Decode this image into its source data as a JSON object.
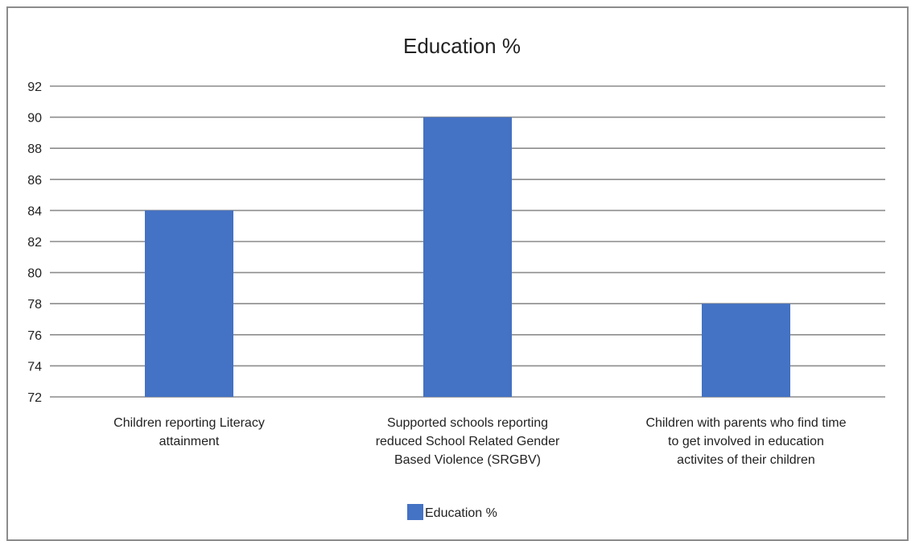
{
  "chart_data": {
    "type": "bar",
    "title": "Education %",
    "xlabel": "",
    "ylabel": "",
    "categories": [
      [
        "Children reporting Literacy",
        "attainment"
      ],
      [
        "Supported schools reporting",
        "reduced School Related Gender",
        "Based Violence (SRGBV)"
      ],
      [
        "Children with parents who find time",
        "to get involved in education",
        "activites of their children"
      ]
    ],
    "series": [
      {
        "name": "Education %",
        "values": [
          84,
          90,
          78
        ]
      }
    ],
    "ylim": [
      72,
      92
    ],
    "yticks": [
      "72",
      "74",
      "76",
      "78",
      "80",
      "82",
      "84",
      "86",
      "88",
      "90",
      "92"
    ],
    "grid": true,
    "legend_position": "bottom",
    "colors": {
      "bar": "#4472C4",
      "grid": "#8c8c8c",
      "text": "#222222"
    }
  }
}
